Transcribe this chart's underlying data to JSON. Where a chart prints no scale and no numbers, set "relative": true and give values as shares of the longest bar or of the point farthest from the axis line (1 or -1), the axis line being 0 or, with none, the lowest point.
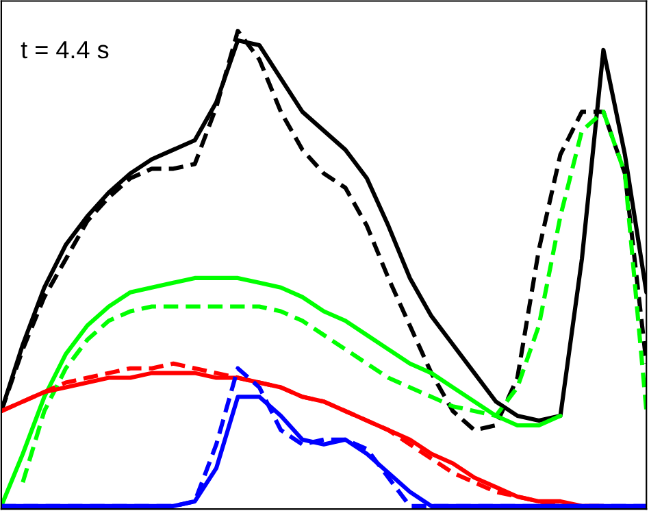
{
  "chart_data": {
    "type": "line",
    "relative": true,
    "annotations": [
      "t = 4.4 s"
    ],
    "categories": [
      null,
      null,
      null,
      null,
      null,
      null,
      null,
      null,
      null,
      null,
      null,
      null,
      null,
      null,
      null,
      null,
      null,
      null,
      null,
      null,
      null,
      null,
      null,
      null,
      null,
      null,
      null,
      null,
      null,
      null,
      null
    ],
    "series": [
      {
        "color": "#000000",
        "line_style": "solid",
        "values": [
          0.2,
          0.34,
          0.46,
          0.55,
          0.61,
          0.66,
          0.7,
          0.73,
          0.75,
          0.77,
          0.85,
          0.98,
          0.97,
          0.9,
          0.83,
          0.79,
          0.75,
          0.69,
          0.59,
          0.48,
          0.4,
          0.34,
          0.28,
          0.22,
          0.19,
          0.18,
          0.19,
          0.52,
          0.96,
          0.74,
          0.45
        ]
      },
      {
        "color": "#000000",
        "line_style": "dashed",
        "values": [
          0.2,
          0.33,
          0.44,
          0.52,
          0.6,
          0.65,
          0.69,
          0.71,
          0.71,
          0.72,
          0.84,
          1.0,
          0.94,
          0.83,
          0.75,
          0.7,
          0.67,
          0.59,
          0.48,
          0.38,
          0.28,
          0.2,
          0.16,
          0.17,
          0.27,
          0.54,
          0.74,
          0.83,
          0.83,
          0.7,
          0.3
        ]
      },
      {
        "color": "#00ff00",
        "line_style": "solid",
        "values": [
          0,
          0.11,
          0.23,
          0.32,
          0.38,
          0.42,
          0.45,
          0.46,
          0.47,
          0.48,
          0.48,
          0.48,
          0.47,
          0.46,
          0.44,
          0.41,
          0.39,
          0.36,
          0.33,
          0.3,
          0.28,
          0.25,
          0.22,
          0.19,
          0.17,
          0.17,
          0.19,
          null,
          null,
          null,
          null
        ]
      },
      {
        "color": "#00ff00",
        "line_style": "dashed",
        "values": [
          null,
          0.05,
          0.2,
          0.29,
          0.35,
          0.39,
          0.41,
          0.42,
          0.42,
          0.42,
          0.42,
          0.42,
          0.42,
          0.41,
          0.39,
          0.36,
          0.33,
          0.3,
          0.27,
          0.25,
          0.23,
          0.21,
          0.2,
          0.19,
          0.25,
          0.38,
          0.61,
          0.79,
          0.83,
          0.7,
          0.2
        ]
      },
      {
        "color": "#ff0000",
        "line_style": "solid",
        "values": [
          0.2,
          0.22,
          0.24,
          0.25,
          0.26,
          0.27,
          0.27,
          0.28,
          0.28,
          0.28,
          0.27,
          0.27,
          0.26,
          0.25,
          0.23,
          0.22,
          0.2,
          0.18,
          0.16,
          0.14,
          0.11,
          0.09,
          0.06,
          0.04,
          0.02,
          0.01,
          0.01,
          0,
          0,
          null,
          null
        ]
      },
      {
        "color": "#ff0000",
        "line_style": "dashed",
        "values": [
          0.2,
          0.22,
          0.24,
          0.26,
          0.27,
          0.28,
          0.29,
          0.29,
          0.3,
          0.29,
          0.28,
          0.27,
          0.26,
          0.25,
          0.23,
          0.22,
          0.2,
          0.18,
          0.16,
          0.13,
          0.1,
          0.07,
          0.05,
          0.03,
          0.02,
          0.01,
          0,
          0,
          0,
          null,
          null
        ]
      },
      {
        "color": "#0000ff",
        "line_style": "solid",
        "values": [
          0,
          0,
          0,
          0,
          0,
          0,
          0,
          0,
          0,
          0.01,
          0.08,
          0.23,
          0.23,
          0.19,
          0.14,
          0.13,
          0.14,
          0.11,
          0.07,
          0.03,
          0,
          0,
          0,
          0,
          0,
          0,
          0,
          0,
          0,
          0,
          0
        ]
      },
      {
        "color": "#0000ff",
        "line_style": "dashed",
        "values": [
          0,
          0,
          0,
          0,
          0,
          0,
          0,
          0,
          0,
          0.01,
          0.13,
          0.29,
          0.25,
          0.16,
          0.13,
          0.14,
          0.14,
          0.12,
          0.06,
          0,
          0,
          0,
          0,
          0,
          0,
          0,
          0,
          0,
          0,
          0,
          0
        ]
      }
    ]
  }
}
